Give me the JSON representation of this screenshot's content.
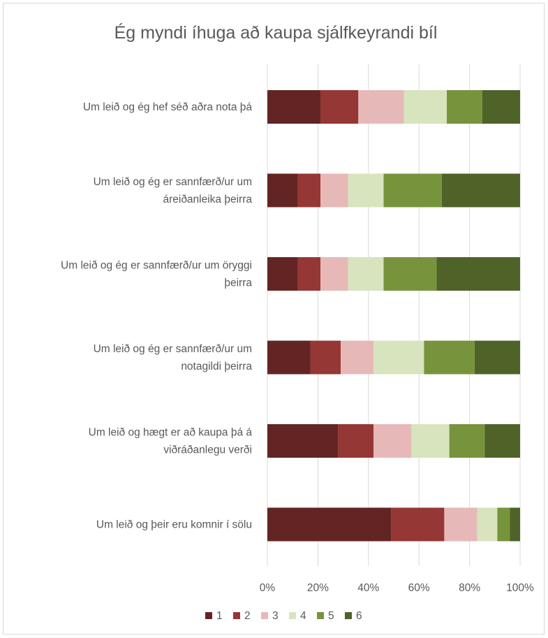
{
  "chart_data": {
    "type": "bar",
    "orientation": "horizontal",
    "stacked": "percent",
    "title": "Ég myndi íhuga að kaupa sjálfkeyrandi bíl",
    "categories": [
      [
        "Um leið og ég hef séð aðra nota þá"
      ],
      [
        "Um leið og ég er sannfærð/ur um",
        "áreiðanleika þeirra"
      ],
      [
        "Um leið og ég er sannfærð/ur um öryggi",
        "þeirra"
      ],
      [
        "Um leið og ég er sannfærð/ur um",
        "notagildi þeirra"
      ],
      [
        "Um leið og hægt er að kaupa þá á",
        "viðráðanlegu verði"
      ],
      [
        "Um leið og þeir eru komnir í sölu"
      ]
    ],
    "series": [
      {
        "name": "1",
        "color": "#632523",
        "values": [
          21,
          12,
          12,
          17,
          28,
          49
        ]
      },
      {
        "name": "2",
        "color": "#953735",
        "values": [
          15,
          9,
          9,
          12,
          14,
          21
        ]
      },
      {
        "name": "3",
        "color": "#e6b9b8",
        "values": [
          18,
          11,
          11,
          13,
          15,
          13
        ]
      },
      {
        "name": "4",
        "color": "#d7e4bd",
        "values": [
          17,
          14,
          14,
          20,
          15,
          8
        ]
      },
      {
        "name": "5",
        "color": "#77933c",
        "values": [
          14,
          23,
          21,
          20,
          14,
          5
        ]
      },
      {
        "name": "6",
        "color": "#4f6228",
        "values": [
          15,
          31,
          33,
          18,
          14,
          4
        ]
      }
    ],
    "xlim": [
      0,
      100
    ],
    "xticks": [
      "0%",
      "20%",
      "40%",
      "60%",
      "80%",
      "100%"
    ],
    "grid": "vertical",
    "legend_position": "bottom"
  }
}
